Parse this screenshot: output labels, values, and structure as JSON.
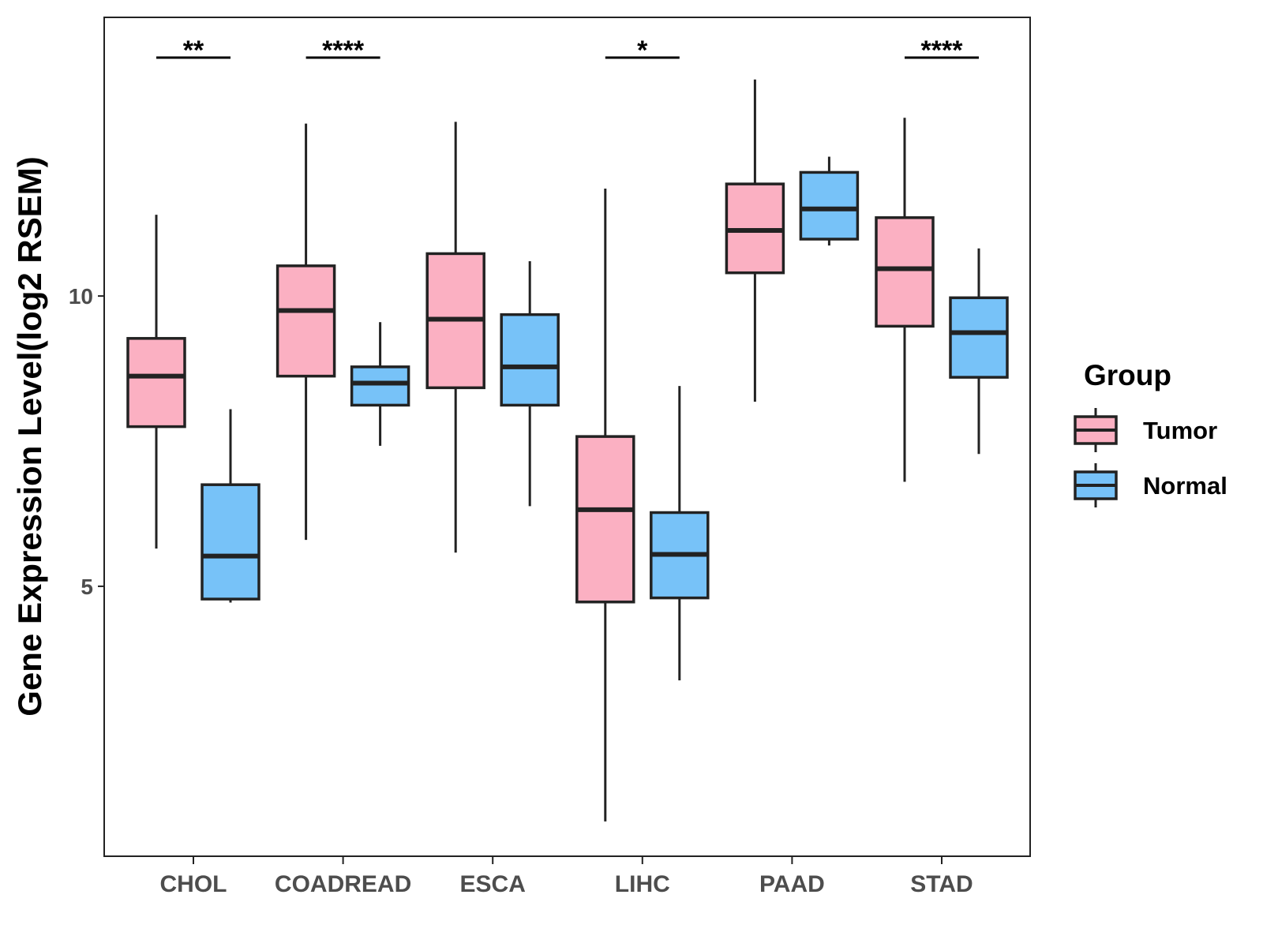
{
  "chart_data": {
    "type": "box",
    "title": "",
    "xlabel": "",
    "ylabel": "Gene Expression Level(log2 RSEM)",
    "ylim": [
      0.35,
      14.8
    ],
    "yticks": [
      5,
      10
    ],
    "categories": [
      "CHOL",
      "COADREAD",
      "ESCA",
      "LIHC",
      "PAAD",
      "STAD"
    ],
    "groups": [
      {
        "name": "Tumor",
        "color": "#fbb0c2"
      },
      {
        "name": "Normal",
        "color": "#77c2f8"
      }
    ],
    "series": [
      {
        "name": "Tumor",
        "boxes": [
          {
            "category": "CHOL",
            "min": 5.65,
            "q1": 7.75,
            "median": 8.62,
            "q3": 9.27,
            "max": 11.4
          },
          {
            "category": "COADREAD",
            "min": 5.8,
            "q1": 8.62,
            "median": 9.75,
            "q3": 10.52,
            "max": 12.97
          },
          {
            "category": "ESCA",
            "min": 5.58,
            "q1": 8.42,
            "median": 9.6,
            "q3": 10.73,
            "max": 13.0
          },
          {
            "category": "LIHC",
            "min": 0.95,
            "q1": 4.73,
            "median": 6.32,
            "q3": 7.58,
            "max": 11.85
          },
          {
            "category": "PAAD",
            "min": 8.18,
            "q1": 10.4,
            "median": 11.13,
            "q3": 11.93,
            "max": 13.73
          },
          {
            "category": "STAD",
            "min": 6.8,
            "q1": 9.48,
            "median": 10.47,
            "q3": 11.35,
            "max": 13.07
          }
        ]
      },
      {
        "name": "Normal",
        "boxes": [
          {
            "category": "CHOL",
            "min": 4.72,
            "q1": 4.78,
            "median": 5.52,
            "q3": 6.75,
            "max": 8.05
          },
          {
            "category": "COADREAD",
            "min": 7.42,
            "q1": 8.12,
            "median": 8.5,
            "q3": 8.78,
            "max": 9.55
          },
          {
            "category": "ESCA",
            "min": 6.38,
            "q1": 8.12,
            "median": 8.78,
            "q3": 9.68,
            "max": 10.6
          },
          {
            "category": "LIHC",
            "min": 3.38,
            "q1": 4.8,
            "median": 5.55,
            "q3": 6.27,
            "max": 8.45
          },
          {
            "category": "PAAD",
            "min": 10.87,
            "q1": 10.98,
            "median": 11.5,
            "q3": 12.13,
            "max": 12.4
          },
          {
            "category": "STAD",
            "min": 7.28,
            "q1": 8.6,
            "median": 9.37,
            "q3": 9.97,
            "max": 10.82
          }
        ]
      }
    ],
    "significance": [
      {
        "category": "CHOL",
        "label": "**"
      },
      {
        "category": "COADREAD",
        "label": "****"
      },
      {
        "category": "LIHC",
        "label": "*"
      },
      {
        "category": "STAD",
        "label": "****"
      }
    ],
    "legend": {
      "title": "Group",
      "position": "right"
    }
  }
}
